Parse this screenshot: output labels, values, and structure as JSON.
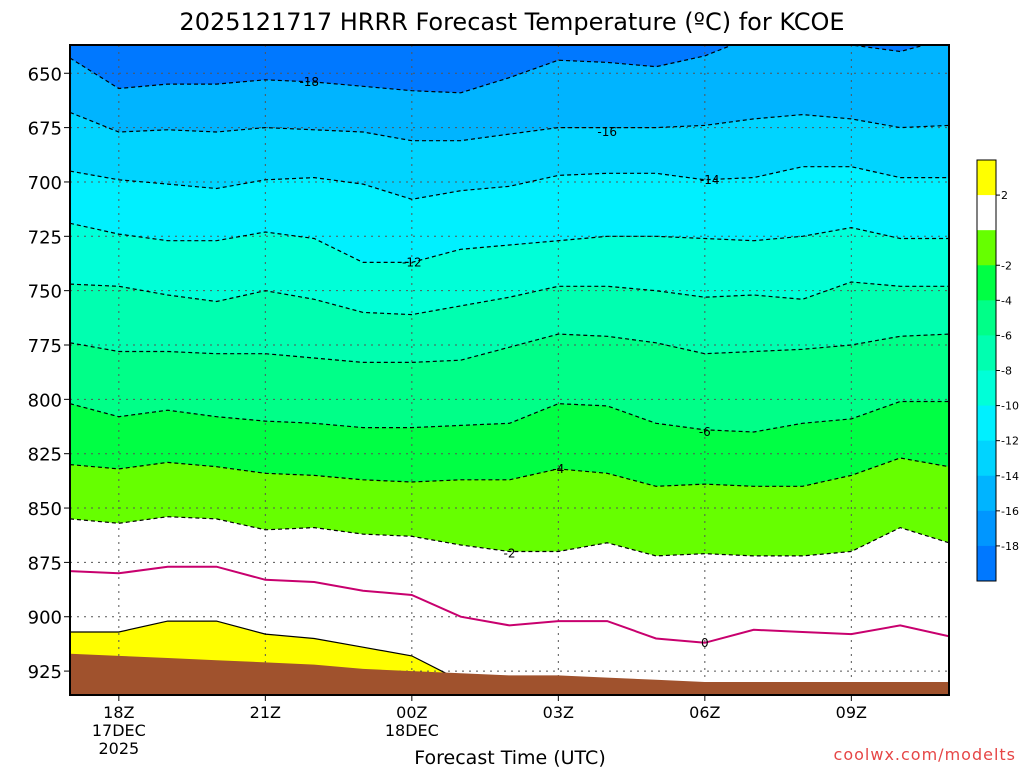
{
  "chart_data": {
    "type": "area",
    "title": "2025121717 HRRR Forecast Temperature (ºC) for KCOE",
    "xlabel": "Forecast Time (UTC)",
    "ylabel": "",
    "credit": "coolwx.com/modelts",
    "x_range": [
      17,
      35
    ],
    "y_range": [
      936,
      637
    ],
    "y_scale": "pressure (inverted)",
    "x_ticks": [
      {
        "x": 18,
        "label": "18Z",
        "sub1": "17DEC",
        "sub2": "2025"
      },
      {
        "x": 21,
        "label": "21Z",
        "sub1": "",
        "sub2": ""
      },
      {
        "x": 24,
        "label": "00Z",
        "sub1": "18DEC",
        "sub2": ""
      },
      {
        "x": 27,
        "label": "03Z",
        "sub1": "",
        "sub2": ""
      },
      {
        "x": 30,
        "label": "06Z",
        "sub1": "",
        "sub2": ""
      },
      {
        "x": 33,
        "label": "09Z",
        "sub1": "",
        "sub2": ""
      }
    ],
    "y_ticks": [
      {
        "y": 650,
        "label": "650"
      },
      {
        "y": 675,
        "label": "675"
      },
      {
        "y": 700,
        "label": "700"
      },
      {
        "y": 725,
        "label": "725"
      },
      {
        "y": 750,
        "label": "750"
      },
      {
        "y": 775,
        "label": "775"
      },
      {
        "y": 800,
        "label": "800"
      },
      {
        "y": 825,
        "label": "825"
      },
      {
        "y": 850,
        "label": "850"
      },
      {
        "y": 875,
        "label": "875"
      },
      {
        "y": 900,
        "label": "900"
      },
      {
        "y": 925,
        "label": "925"
      }
    ],
    "grid": true,
    "contours": [
      {
        "value": -18,
        "label": "-18",
        "label_at": [
          21.9,
          654
        ],
        "color": "#000000",
        "dashed": true,
        "points": [
          [
            17,
            643
          ],
          [
            18,
            657
          ],
          [
            19,
            655
          ],
          [
            20,
            655
          ],
          [
            21,
            653
          ],
          [
            22,
            654
          ],
          [
            23,
            656
          ],
          [
            24,
            658
          ],
          [
            25,
            659
          ],
          [
            26,
            652
          ],
          [
            27,
            644
          ],
          [
            28,
            645
          ],
          [
            29,
            647
          ],
          [
            30,
            642
          ],
          [
            31,
            633
          ],
          [
            32,
            635
          ],
          [
            33,
            637
          ],
          [
            34,
            640
          ],
          [
            35,
            634
          ]
        ]
      },
      {
        "value": -16,
        "label": "-16",
        "label_at": [
          28.0,
          677
        ],
        "color": "#000000",
        "dashed": true,
        "points": [
          [
            17,
            668
          ],
          [
            18,
            677
          ],
          [
            19,
            676
          ],
          [
            20,
            677
          ],
          [
            21,
            675
          ],
          [
            22,
            676
          ],
          [
            23,
            677
          ],
          [
            24,
            681
          ],
          [
            25,
            681
          ],
          [
            26,
            678
          ],
          [
            27,
            675
          ],
          [
            28,
            675
          ],
          [
            29,
            675
          ],
          [
            30,
            674
          ],
          [
            31,
            671
          ],
          [
            32,
            669
          ],
          [
            33,
            671
          ],
          [
            34,
            675
          ],
          [
            35,
            674
          ]
        ]
      },
      {
        "value": -14,
        "label": "-14",
        "label_at": [
          30.1,
          699
        ],
        "color": "#000000",
        "dashed": true,
        "points": [
          [
            17,
            695
          ],
          [
            18,
            699
          ],
          [
            19,
            701
          ],
          [
            20,
            703
          ],
          [
            21,
            699
          ],
          [
            22,
            698
          ],
          [
            23,
            701
          ],
          [
            24,
            708
          ],
          [
            25,
            704
          ],
          [
            26,
            702
          ],
          [
            27,
            697
          ],
          [
            28,
            696
          ],
          [
            29,
            696
          ],
          [
            30,
            699
          ],
          [
            31,
            698
          ],
          [
            32,
            693
          ],
          [
            33,
            693
          ],
          [
            34,
            698
          ],
          [
            35,
            698
          ]
        ]
      },
      {
        "value": -12,
        "label": "-12",
        "label_at": [
          24.0,
          737
        ],
        "color": "#000000",
        "dashed": true,
        "points": [
          [
            17,
            719
          ],
          [
            18,
            724
          ],
          [
            19,
            727
          ],
          [
            20,
            727
          ],
          [
            21,
            723
          ],
          [
            22,
            726
          ],
          [
            23,
            737
          ],
          [
            24,
            737
          ],
          [
            25,
            731
          ],
          [
            26,
            729
          ],
          [
            27,
            727
          ],
          [
            28,
            725
          ],
          [
            29,
            725
          ],
          [
            30,
            726
          ],
          [
            31,
            727
          ],
          [
            32,
            725
          ],
          [
            33,
            721
          ],
          [
            34,
            726
          ],
          [
            35,
            726
          ]
        ]
      },
      {
        "value": -10,
        "label": "",
        "label_at": null,
        "color": "#000000",
        "dashed": true,
        "points": [
          [
            17,
            747
          ],
          [
            18,
            748
          ],
          [
            19,
            752
          ],
          [
            20,
            755
          ],
          [
            21,
            750
          ],
          [
            22,
            754
          ],
          [
            23,
            760
          ],
          [
            24,
            761
          ],
          [
            25,
            757
          ],
          [
            26,
            753
          ],
          [
            27,
            748
          ],
          [
            28,
            748
          ],
          [
            29,
            750
          ],
          [
            30,
            753
          ],
          [
            31,
            752
          ],
          [
            32,
            754
          ],
          [
            33,
            746
          ],
          [
            34,
            748
          ],
          [
            35,
            748
          ]
        ]
      },
      {
        "value": -8,
        "label": "",
        "label_at": null,
        "color": "#000000",
        "dashed": true,
        "points": [
          [
            17,
            774
          ],
          [
            18,
            778
          ],
          [
            19,
            778
          ],
          [
            20,
            779
          ],
          [
            21,
            779
          ],
          [
            22,
            781
          ],
          [
            23,
            783
          ],
          [
            24,
            783
          ],
          [
            25,
            782
          ],
          [
            26,
            776
          ],
          [
            27,
            770
          ],
          [
            28,
            771
          ],
          [
            29,
            774
          ],
          [
            30,
            779
          ],
          [
            31,
            778
          ],
          [
            32,
            777
          ],
          [
            33,
            775
          ],
          [
            34,
            771
          ],
          [
            35,
            770
          ]
        ]
      },
      {
        "value": -6,
        "label": "-6",
        "label_at": [
          30.0,
          815
        ],
        "color": "#000000",
        "dashed": true,
        "points": [
          [
            17,
            802
          ],
          [
            18,
            808
          ],
          [
            19,
            805
          ],
          [
            20,
            808
          ],
          [
            21,
            810
          ],
          [
            22,
            811
          ],
          [
            23,
            813
          ],
          [
            24,
            813
          ],
          [
            25,
            812
          ],
          [
            26,
            811
          ],
          [
            27,
            802
          ],
          [
            28,
            803
          ],
          [
            29,
            811
          ],
          [
            30,
            814
          ],
          [
            31,
            815
          ],
          [
            32,
            811
          ],
          [
            33,
            809
          ],
          [
            34,
            801
          ],
          [
            35,
            801
          ]
        ]
      },
      {
        "value": -4,
        "label": "-4",
        "label_at": [
          27.0,
          832
        ],
        "color": "#000000",
        "dashed": true,
        "points": [
          [
            17,
            830
          ],
          [
            18,
            832
          ],
          [
            19,
            829
          ],
          [
            20,
            831
          ],
          [
            21,
            834
          ],
          [
            22,
            835
          ],
          [
            23,
            837
          ],
          [
            24,
            838
          ],
          [
            25,
            837
          ],
          [
            26,
            837
          ],
          [
            27,
            832
          ],
          [
            28,
            834
          ],
          [
            29,
            840
          ],
          [
            30,
            839
          ],
          [
            31,
            840
          ],
          [
            32,
            840
          ],
          [
            33,
            835
          ],
          [
            34,
            827
          ],
          [
            35,
            831
          ]
        ]
      },
      {
        "value": -2,
        "label": "-2",
        "label_at": [
          26.0,
          871
        ],
        "color": "#000000",
        "dashed": true,
        "points": [
          [
            17,
            855
          ],
          [
            18,
            857
          ],
          [
            19,
            854
          ],
          [
            20,
            855
          ],
          [
            21,
            860
          ],
          [
            22,
            859
          ],
          [
            23,
            862
          ],
          [
            24,
            863
          ],
          [
            25,
            867
          ],
          [
            26,
            870
          ],
          [
            27,
            870
          ],
          [
            28,
            866
          ],
          [
            29,
            872
          ],
          [
            30,
            871
          ],
          [
            31,
            872
          ],
          [
            32,
            872
          ],
          [
            33,
            870
          ],
          [
            34,
            859
          ],
          [
            35,
            866
          ]
        ]
      },
      {
        "value": 0,
        "label": "0",
        "label_at": [
          30.0,
          912
        ],
        "color": "#c8006e",
        "dashed": false,
        "points": [
          [
            17,
            879
          ],
          [
            18,
            880
          ],
          [
            19,
            877
          ],
          [
            20,
            877
          ],
          [
            21,
            883
          ],
          [
            22,
            884
          ],
          [
            23,
            888
          ],
          [
            24,
            890
          ],
          [
            25,
            900
          ],
          [
            26,
            904
          ],
          [
            27,
            902
          ],
          [
            28,
            902
          ],
          [
            29,
            910
          ],
          [
            30,
            912
          ],
          [
            31,
            906
          ],
          [
            32,
            907
          ],
          [
            33,
            908
          ],
          [
            34,
            904
          ],
          [
            35,
            909
          ]
        ]
      },
      {
        "value": 2,
        "label": "",
        "label_at": null,
        "color": "#000000",
        "dashed": false,
        "points": [
          [
            17,
            907
          ],
          [
            18,
            907
          ],
          [
            19,
            902
          ],
          [
            20,
            902
          ],
          [
            21,
            908
          ],
          [
            22,
            910
          ],
          [
            23,
            914
          ],
          [
            24,
            918
          ],
          [
            24.7,
            926
          ]
        ]
      }
    ],
    "terrain_surface": [
      [
        17,
        917
      ],
      [
        18,
        918
      ],
      [
        19,
        919
      ],
      [
        20,
        920
      ],
      [
        21,
        921
      ],
      [
        22,
        922
      ],
      [
        23,
        924
      ],
      [
        24,
        925
      ],
      [
        25,
        926
      ],
      [
        26,
        927
      ],
      [
        27,
        927
      ],
      [
        28,
        928
      ],
      [
        29,
        929
      ],
      [
        30,
        930
      ],
      [
        31,
        930
      ],
      [
        32,
        930
      ],
      [
        33,
        930
      ],
      [
        34,
        930
      ],
      [
        35,
        930
      ]
    ],
    "colorbar": {
      "colors": [
        "#ffff00",
        "#ffffff",
        "#66ff00",
        "#00ff44",
        "#00ff88",
        "#00ffb0",
        "#00ffd8",
        "#00f0ff",
        "#00d4ff",
        "#00b4ff",
        "#0096ff",
        "#0078ff"
      ],
      "labels": [
        "2",
        "-2",
        "-4",
        "-6",
        "-8",
        "-10",
        "-12",
        "-14",
        "-16",
        "-18"
      ],
      "colors_note": "top to bottom"
    },
    "colors": {
      "terrain": "#a0522d",
      "warm_above_2": "#ffff00",
      "freezing_line": "#c8006e",
      "credit_text": "#e64646"
    }
  }
}
